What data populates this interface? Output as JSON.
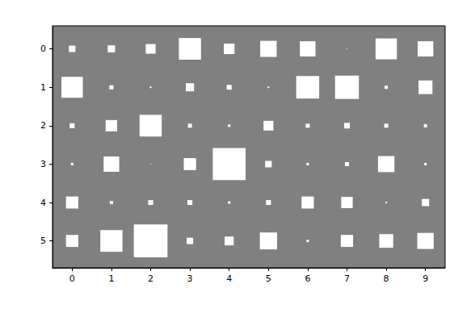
{
  "chart_data": {
    "type": "hinton",
    "xlim": [
      -0.5,
      9.5
    ],
    "xticks": [
      0,
      1,
      2,
      3,
      4,
      5,
      6,
      7,
      8,
      9
    ],
    "ylim": [
      -0.6,
      5.7
    ],
    "yticks": [
      0,
      1,
      2,
      3,
      4,
      5
    ],
    "max_weight": 1,
    "color": "#ffffff",
    "values": [
      [
        0.028,
        0.035,
        0.063,
        0.319,
        0.074,
        0.175,
        0.158,
        0.0004,
        0.296,
        0.158
      ],
      [
        0.296,
        0.011,
        0.0018,
        0.044,
        0.016,
        0.0018,
        0.343,
        0.368,
        0.007,
        0.126
      ],
      [
        0.016,
        0.086,
        0.319,
        0.011,
        0.004,
        0.063,
        0.011,
        0.021,
        0.011,
        0.007
      ],
      [
        0.004,
        0.158,
        0.0004,
        0.098,
        0.7,
        0.028,
        0.004,
        0.011,
        0.175,
        0.004
      ],
      [
        0.098,
        0.007,
        0.016,
        0.016,
        0.004,
        0.016,
        0.098,
        0.086,
        0.0018,
        0.035
      ],
      [
        0.098,
        0.319,
        0.736,
        0.028,
        0.053,
        0.193,
        0.004,
        0.098,
        0.126,
        0.175
      ]
    ]
  }
}
